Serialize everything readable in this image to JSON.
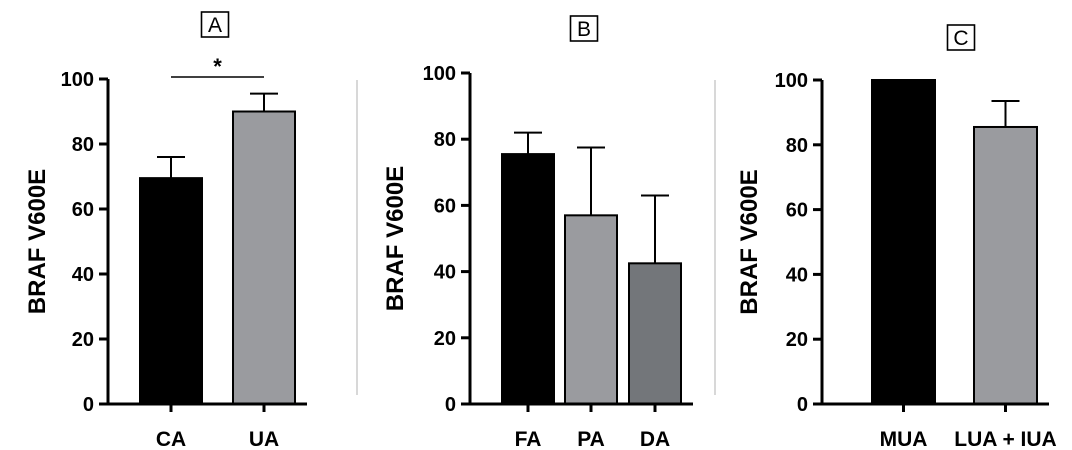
{
  "chart_data": [
    {
      "type": "bar",
      "panel_label": "A",
      "ylabel": "BRAF V600E",
      "ylim": [
        0,
        100
      ],
      "yticks": [
        0,
        20,
        40,
        60,
        80,
        100
      ],
      "categories": [
        "CA",
        "UA"
      ],
      "values": [
        69.5,
        90
      ],
      "errors": [
        6.5,
        5.5
      ],
      "colors": [
        "#000000",
        "#9a9b9f"
      ],
      "significance": {
        "label": "*",
        "from": 0,
        "to": 1
      }
    },
    {
      "type": "bar",
      "panel_label": "B",
      "ylabel": "BRAF V600E",
      "ylim": [
        0,
        100
      ],
      "yticks": [
        0,
        20,
        40,
        60,
        80,
        100
      ],
      "categories": [
        "FA",
        "PA",
        "DA"
      ],
      "values": [
        75.5,
        57,
        42.5
      ],
      "errors": [
        6.5,
        20.5,
        20.5
      ],
      "colors": [
        "#000000",
        "#9a9b9f",
        "#73767a"
      ]
    },
    {
      "type": "bar",
      "panel_label": "C",
      "ylabel": "BRAF V600E",
      "ylim": [
        0,
        100
      ],
      "yticks": [
        0,
        20,
        40,
        60,
        80,
        100
      ],
      "categories": [
        "MUA",
        "LUA + IUA"
      ],
      "values": [
        100,
        85.5
      ],
      "errors": [
        0,
        8
      ],
      "colors": [
        "#000000",
        "#9a9b9f"
      ]
    }
  ]
}
